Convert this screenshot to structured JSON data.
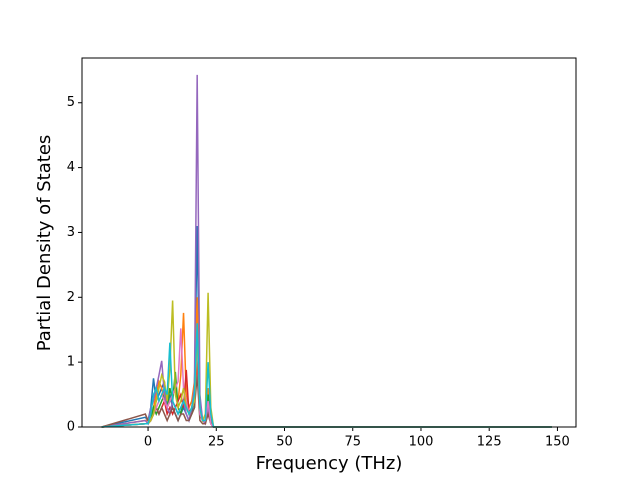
{
  "chart_data": {
    "type": "line",
    "xlabel": "Frequency (THz)",
    "ylabel": "Partial Density of States",
    "x": [
      -17,
      -1,
      0,
      1,
      2,
      3,
      4,
      5,
      6,
      7,
      8,
      9,
      10,
      11,
      12,
      13,
      14,
      15,
      16,
      17,
      18,
      19,
      20,
      21,
      22,
      23,
      24,
      148
    ],
    "series": [
      {
        "color": "#1f77b4",
        "values": [
          0,
          0.15,
          0.1,
          0.3,
          0.75,
          0.4,
          0.5,
          0.6,
          0.7,
          0.3,
          0.5,
          0.3,
          0.2,
          0.1,
          0.2,
          0.3,
          0.2,
          0.1,
          0.2,
          0.5,
          3.1,
          0.3,
          0.1,
          0.1,
          0.4,
          0.1,
          0,
          0
        ]
      },
      {
        "color": "#ff7f0e",
        "values": [
          0,
          0.1,
          0.1,
          0.2,
          0.3,
          0.5,
          0.7,
          0.6,
          0.4,
          0.3,
          0.4,
          0.5,
          0.6,
          0.4,
          0.8,
          1.76,
          0.5,
          0.3,
          0.4,
          0.7,
          2.0,
          0.4,
          0.1,
          0.1,
          0.6,
          0.1,
          0,
          0
        ]
      },
      {
        "color": "#2ca02c",
        "values": [
          0,
          0.05,
          0.05,
          0.1,
          0.3,
          0.2,
          0.3,
          0.4,
          0.5,
          0.3,
          0.6,
          0.4,
          0.85,
          0.3,
          0.2,
          0.4,
          0.3,
          0.2,
          0.2,
          0.3,
          1.2,
          0.2,
          0.1,
          0.1,
          0.5,
          0.1,
          0,
          0
        ]
      },
      {
        "color": "#d62728",
        "values": [
          0,
          0.05,
          0.05,
          0.1,
          0.2,
          0.3,
          0.2,
          0.3,
          0.4,
          0.2,
          0.3,
          0.2,
          0.3,
          0.4,
          0.5,
          0.3,
          0.88,
          0.2,
          0.3,
          0.4,
          1.0,
          0.2,
          0.1,
          0.1,
          0.3,
          0.05,
          0,
          0
        ]
      },
      {
        "color": "#9467bd",
        "values": [
          0,
          0.1,
          0.05,
          0.3,
          0.4,
          0.6,
          0.8,
          1.02,
          0.5,
          0.3,
          0.2,
          0.4,
          0.3,
          0.2,
          0.3,
          0.4,
          0.2,
          0.1,
          0.3,
          0.6,
          5.43,
          0.5,
          0.1,
          0.05,
          0.3,
          0.05,
          0,
          0
        ]
      },
      {
        "color": "#8c564b",
        "values": [
          0,
          0.2,
          0.1,
          0.1,
          0.2,
          0.3,
          0.2,
          0.3,
          0.2,
          0.1,
          0.2,
          0.3,
          0.2,
          0.1,
          0.2,
          0.2,
          0.1,
          0.1,
          0.2,
          0.3,
          0.8,
          0.1,
          0.05,
          0.05,
          0.2,
          0.05,
          0,
          0
        ]
      },
      {
        "color": "#e377c2",
        "values": [
          0,
          0.05,
          0.05,
          0.1,
          0.2,
          0.3,
          0.4,
          0.5,
          0.4,
          0.3,
          0.4,
          0.5,
          0.6,
          0.7,
          1.52,
          0.6,
          0.4,
          0.2,
          0.3,
          0.4,
          1.3,
          0.2,
          0.1,
          0.1,
          0.4,
          0.05,
          0,
          0
        ]
      },
      {
        "color": "#bcbd22",
        "values": [
          0,
          0.05,
          0.05,
          0.1,
          0.2,
          0.4,
          0.6,
          0.8,
          0.7,
          0.4,
          0.9,
          1.95,
          0.5,
          0.3,
          0.4,
          0.6,
          0.3,
          0.2,
          0.3,
          0.4,
          1.4,
          0.3,
          0.1,
          0.2,
          2.07,
          0.3,
          0,
          0
        ]
      },
      {
        "color": "#17becf",
        "values": [
          0,
          0.05,
          0.05,
          0.2,
          0.5,
          0.6,
          0.4,
          0.5,
          0.6,
          0.5,
          1.3,
          0.4,
          0.3,
          0.2,
          0.3,
          0.4,
          0.3,
          0.2,
          0.3,
          0.5,
          1.6,
          0.3,
          0.1,
          0.1,
          1.0,
          0.2,
          0,
          0
        ]
      }
    ],
    "xlim": [
      -24.2,
      156.8
    ],
    "ylim": [
      0,
      5.69
    ],
    "xticks": [
      0,
      25,
      50,
      75,
      100,
      125,
      150
    ],
    "yticks": [
      0,
      1,
      2,
      3,
      4,
      5
    ],
    "grid": false
  }
}
